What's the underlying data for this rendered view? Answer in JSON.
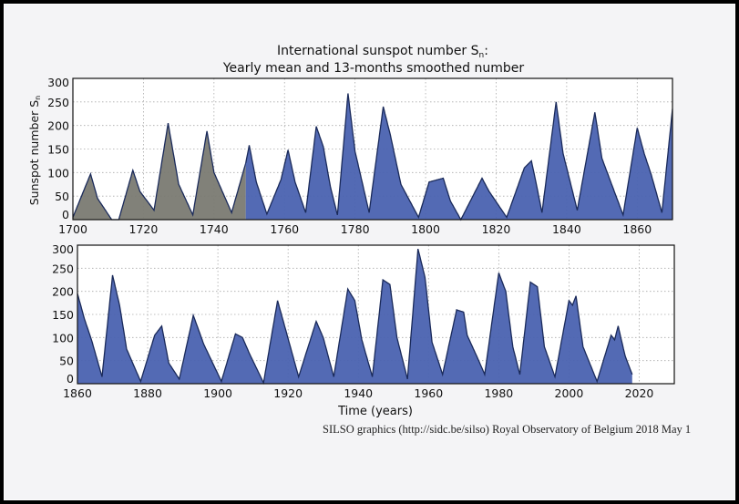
{
  "chart_data": {
    "type": "area",
    "title": "International sunspot number S",
    "title_subscript": "n",
    "title_suffix": ":",
    "subtitle": "Yearly mean and 13-months smoothed number",
    "ylabel": "Sunspot number S",
    "ylabel_subscript": "n",
    "xlabel": "Time (years)",
    "grid": true,
    "ylim": [
      0,
      300
    ],
    "yticks": [
      "0",
      "50",
      "100",
      "150",
      "200",
      "250",
      "300"
    ],
    "panels": [
      {
        "xlim": [
          1700,
          1870
        ],
        "xticks": [
          "1700",
          "1720",
          "1740",
          "1760",
          "1780",
          "1800",
          "1820",
          "1840",
          "1860"
        ]
      },
      {
        "xlim": [
          1860,
          2030
        ],
        "xticks": [
          "1860",
          "1880",
          "1900",
          "1920",
          "1940",
          "1960",
          "1980",
          "2000",
          "2020"
        ]
      }
    ],
    "series_colors": {
      "before_1749": "#7a7a72",
      "from_1749": "#4a62b0",
      "line": "#1a2a5a"
    },
    "color_change_year": 1749,
    "x": [
      1700,
      1705,
      1707,
      1711,
      1713,
      1717,
      1719,
      1723,
      1727,
      1730,
      1734,
      1738,
      1740,
      1745,
      1749,
      1750,
      1752,
      1755,
      1759,
      1761,
      1763,
      1766,
      1769,
      1771,
      1773,
      1775,
      1778,
      1780,
      1784,
      1788,
      1790,
      1793,
      1798,
      1801,
      1805,
      1807,
      1810,
      1816,
      1818,
      1823,
      1828,
      1830,
      1831,
      1833,
      1837,
      1839,
      1843,
      1848,
      1850,
      1856,
      1860,
      1862,
      1864,
      1867,
      1870,
      1872,
      1874,
      1878,
      1882,
      1884,
      1886,
      1889,
      1893,
      1896,
      1901,
      1905,
      1907,
      1909,
      1913,
      1917,
      1919,
      1923,
      1928,
      1930,
      1933,
      1937,
      1939,
      1941,
      1944,
      1947,
      1949,
      1951,
      1954,
      1957,
      1959,
      1961,
      1964,
      1968,
      1970,
      1971,
      1974,
      1976,
      1980,
      1982,
      1984,
      1986,
      1989,
      1991,
      1993,
      1996,
      2000,
      2001,
      2002,
      2004,
      2008,
      2012,
      2013,
      2014,
      2016,
      2018
    ],
    "y": [
      5,
      97,
      45,
      0,
      0,
      105,
      60,
      20,
      205,
      75,
      10,
      188,
      100,
      15,
      120,
      158,
      80,
      12,
      85,
      148,
      80,
      15,
      198,
      155,
      70,
      10,
      268,
      145,
      15,
      240,
      180,
      75,
      5,
      80,
      88,
      40,
      0,
      88,
      60,
      5,
      110,
      125,
      90,
      15,
      250,
      140,
      20,
      228,
      130,
      10,
      195,
      140,
      95,
      15,
      235,
      170,
      75,
      5,
      105,
      125,
      45,
      10,
      148,
      85,
      5,
      108,
      100,
      65,
      2,
      180,
      125,
      15,
      135,
      100,
      15,
      205,
      180,
      95,
      15,
      225,
      215,
      100,
      10,
      292,
      230,
      90,
      20,
      160,
      155,
      105,
      55,
      20,
      240,
      200,
      80,
      20,
      220,
      210,
      80,
      15,
      180,
      170,
      190,
      80,
      5,
      105,
      95,
      125,
      60,
      20
    ]
  },
  "credit": "SILSO graphics (http://sidc.be/silso)  Royal Observatory of Belgium  2018 May 1"
}
